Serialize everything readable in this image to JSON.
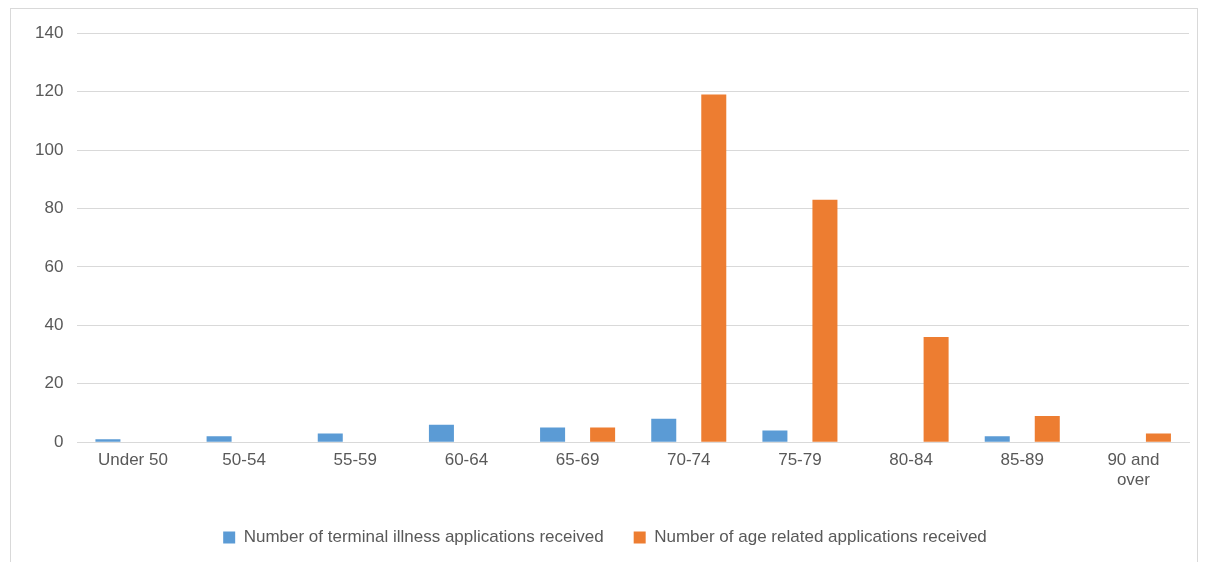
{
  "chart_data": {
    "type": "bar",
    "categories": [
      "Under 50",
      "50-54",
      "55-59",
      "60-64",
      "65-69",
      "70-74",
      "75-79",
      "80-84",
      "85-89",
      "90 and over"
    ],
    "series": [
      {
        "name": "Number of terminal illness applications received",
        "color": "#5b9bd5",
        "values": [
          1,
          2,
          3,
          6,
          5,
          8,
          4,
          0,
          2,
          0
        ]
      },
      {
        "name": "Number of age related applications received",
        "color": "#ed7d31",
        "values": [
          0,
          0,
          0,
          0,
          5,
          119,
          83,
          36,
          9,
          3
        ]
      }
    ],
    "ylim": [
      0,
      140
    ],
    "yticks": [
      0,
      20,
      40,
      60,
      80,
      100,
      120,
      140
    ],
    "grid": "y",
    "legend": "bottom"
  }
}
